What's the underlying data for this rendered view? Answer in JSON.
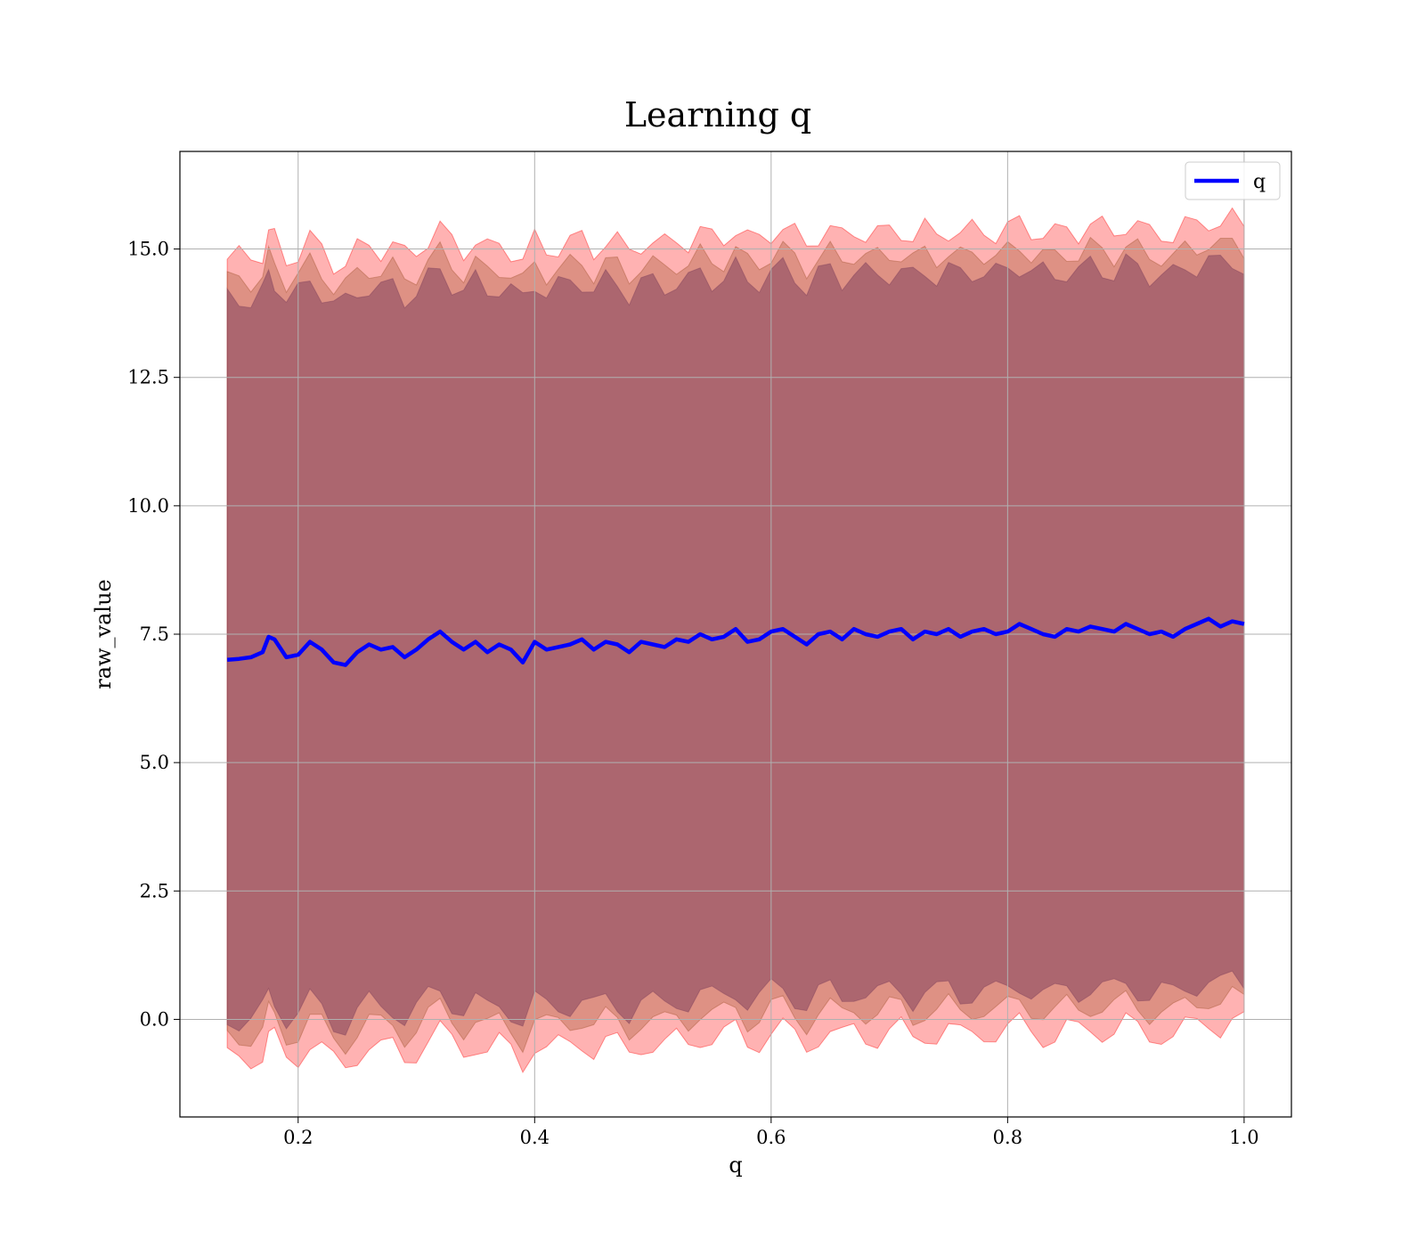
{
  "chart_data": {
    "type": "line",
    "title": "Learning q",
    "xlabel": "q",
    "ylabel": "raw_value",
    "xlim": [
      0.1,
      1.04
    ],
    "ylim": [
      -1.9,
      16.9
    ],
    "grid": true,
    "legend_position": "top-right",
    "x_ticks": [
      0.2,
      0.4,
      0.6,
      0.8,
      1.0
    ],
    "x_tick_labels": [
      "0.2",
      "0.4",
      "0.6",
      "0.8",
      "1.0"
    ],
    "y_ticks": [
      0.0,
      2.5,
      5.0,
      7.5,
      10.0,
      12.5,
      15.0
    ],
    "y_tick_labels": [
      "0.0",
      "2.5",
      "5.0",
      "7.5",
      "10.0",
      "12.5",
      "15.0"
    ],
    "series": [
      {
        "name": "q",
        "color": "#0000ff",
        "x": [
          0.14,
          0.15,
          0.16,
          0.17,
          0.175,
          0.18,
          0.19,
          0.2,
          0.21,
          0.22,
          0.23,
          0.24,
          0.25,
          0.26,
          0.27,
          0.28,
          0.29,
          0.3,
          0.31,
          0.32,
          0.33,
          0.34,
          0.35,
          0.36,
          0.37,
          0.38,
          0.39,
          0.4,
          0.41,
          0.42,
          0.43,
          0.44,
          0.45,
          0.46,
          0.47,
          0.48,
          0.49,
          0.5,
          0.51,
          0.52,
          0.53,
          0.54,
          0.55,
          0.56,
          0.57,
          0.58,
          0.59,
          0.6,
          0.61,
          0.62,
          0.63,
          0.64,
          0.65,
          0.66,
          0.67,
          0.68,
          0.69,
          0.7,
          0.71,
          0.72,
          0.73,
          0.74,
          0.75,
          0.76,
          0.77,
          0.78,
          0.79,
          0.8,
          0.81,
          0.82,
          0.83,
          0.84,
          0.85,
          0.86,
          0.87,
          0.88,
          0.89,
          0.9,
          0.91,
          0.92,
          0.93,
          0.94,
          0.95,
          0.96,
          0.97,
          0.98,
          0.99,
          1.0
        ],
        "y": [
          7.0,
          7.02,
          7.05,
          7.15,
          7.45,
          7.4,
          7.05,
          7.1,
          7.35,
          7.2,
          6.95,
          6.9,
          7.15,
          7.3,
          7.2,
          7.25,
          7.05,
          7.2,
          7.4,
          7.55,
          7.35,
          7.2,
          7.35,
          7.15,
          7.3,
          7.2,
          6.95,
          7.35,
          7.2,
          7.25,
          7.3,
          7.4,
          7.2,
          7.35,
          7.3,
          7.15,
          7.35,
          7.3,
          7.25,
          7.4,
          7.35,
          7.5,
          7.4,
          7.45,
          7.6,
          7.35,
          7.4,
          7.55,
          7.6,
          7.45,
          7.3,
          7.5,
          7.55,
          7.4,
          7.6,
          7.5,
          7.45,
          7.55,
          7.6,
          7.4,
          7.55,
          7.5,
          7.6,
          7.45,
          7.55,
          7.6,
          7.5,
          7.55,
          7.7,
          7.6,
          7.5,
          7.45,
          7.6,
          7.55,
          7.65,
          7.6,
          7.55,
          7.7,
          7.6,
          7.5,
          7.55,
          7.45,
          7.6,
          7.7,
          7.8,
          7.65,
          7.75,
          7.7
        ],
        "bands": [
          {
            "label": "",
            "half_width": 7.8,
            "fill": "#ff0000",
            "opacity": 0.3
          },
          {
            "label": "",
            "half_width": 7.35,
            "fill": "#a0522d",
            "opacity": 0.35
          },
          {
            "label": "",
            "half_width": 7.0,
            "fill": "#7a3b5a",
            "opacity": 0.5
          }
        ]
      }
    ]
  }
}
